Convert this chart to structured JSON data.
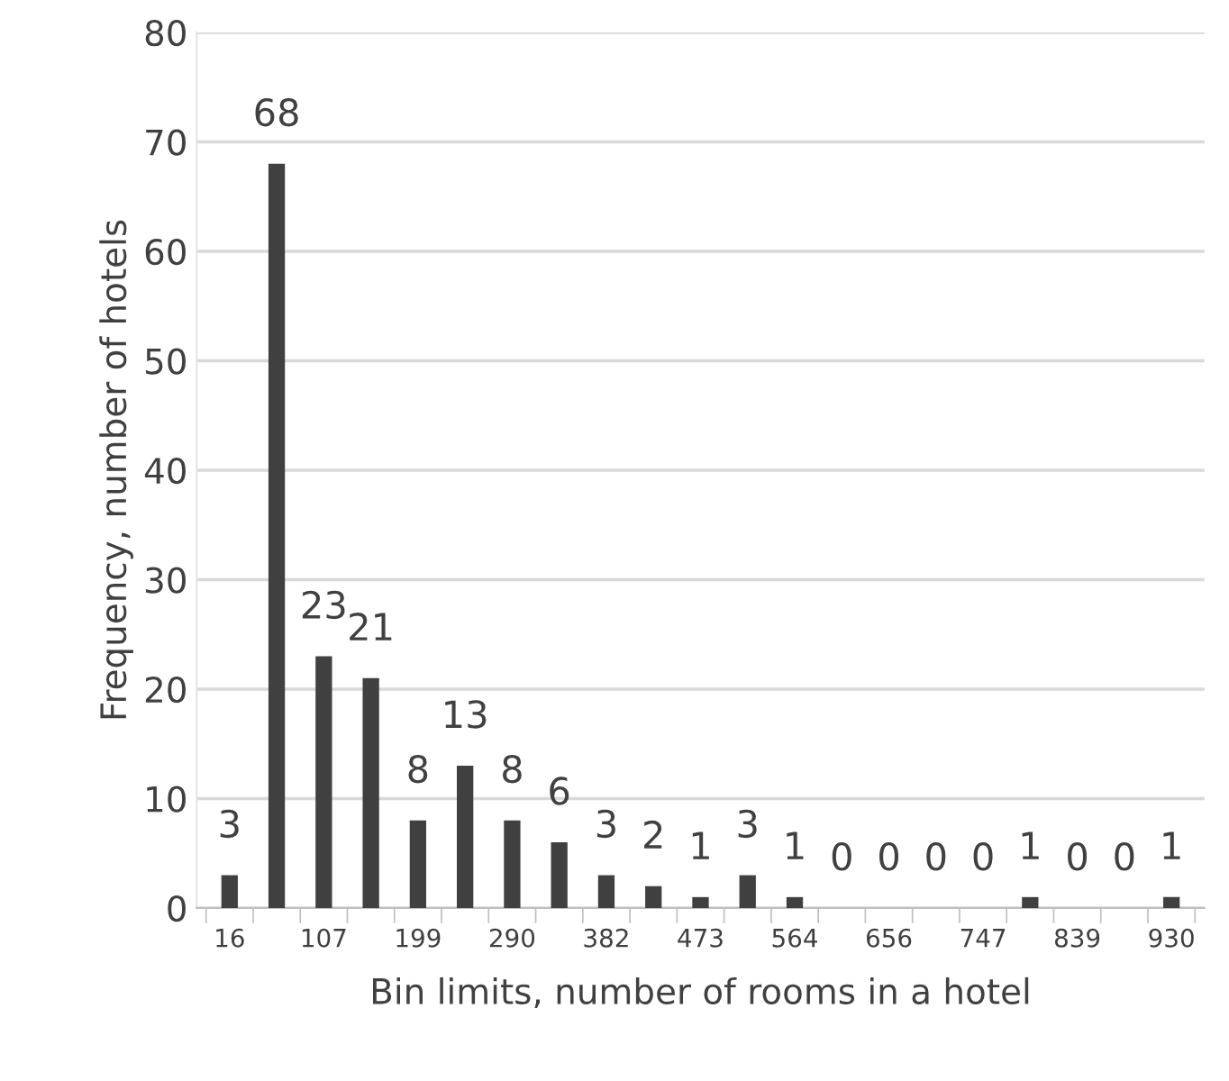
{
  "chart_data": {
    "type": "bar",
    "xlabel": "Bin limits, number of rooms in a hotel",
    "ylabel": "Frequency, number of hotels",
    "categories": [
      "16",
      null,
      "107",
      null,
      "199",
      null,
      "290",
      null,
      "382",
      null,
      "473",
      null,
      "564",
      null,
      "656",
      null,
      "747",
      null,
      "839",
      null,
      "930"
    ],
    "values": [
      3,
      68,
      23,
      21,
      8,
      13,
      8,
      6,
      3,
      2,
      1,
      3,
      1,
      0,
      0,
      0,
      0,
      1,
      0,
      0,
      1
    ],
    "color": "#404040",
    "ylim": [
      0,
      80
    ],
    "yticks": [
      0,
      10,
      20,
      30,
      40,
      50,
      60,
      70,
      80
    ],
    "grid": "y",
    "data_labels": true
  }
}
